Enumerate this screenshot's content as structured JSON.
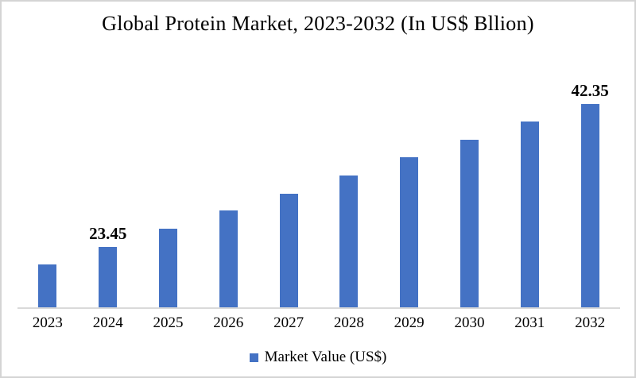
{
  "window": {
    "background": "#ffffff",
    "border_color": "#d4d4d4"
  },
  "chart": {
    "title": "Global Protein Market, 2023-2032 (In US$ Bllion)",
    "colors": {
      "bar": "#4472C4",
      "axis_line": "#d9d9d9",
      "text": "#000000"
    },
    "legend": {
      "marker": "square-icon",
      "label": "Market Value (US$)"
    }
  },
  "chart_data": {
    "type": "bar",
    "title": "Global Protein Market, 2023-2032 (In US$ Bllion)",
    "categories": [
      "2023",
      "2024",
      "2025",
      "2026",
      "2027",
      "2028",
      "2029",
      "2030",
      "2031",
      "2032"
    ],
    "series": [
      {
        "name": "Market Value (US$)",
        "values": [
          21.1,
          23.45,
          25.8,
          28.2,
          30.5,
          32.9,
          35.3,
          37.6,
          40.0,
          42.35
        ]
      }
    ],
    "data_labels": [
      "",
      "23.45",
      "",
      "",
      "",
      "",
      "",
      "",
      "",
      "42.35"
    ],
    "xlabel": "",
    "ylabel": "",
    "ylim": [
      15.4,
      45.4
    ],
    "grid": false,
    "legend_position": "bottom"
  }
}
